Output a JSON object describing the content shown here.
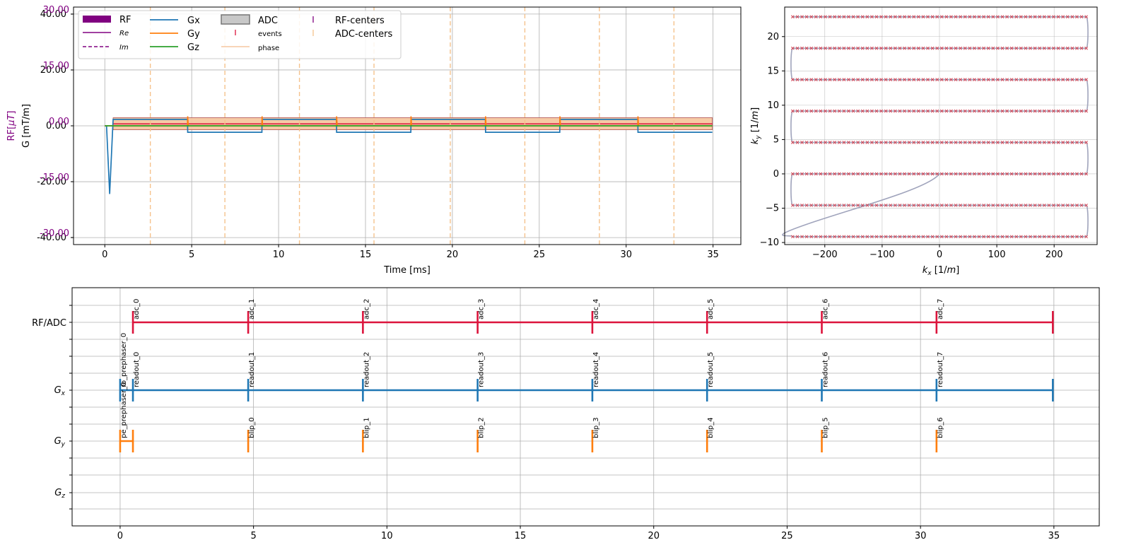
{
  "colors": {
    "rf": "#800080",
    "gx": "#1f77b4",
    "gy": "#ff7f0e",
    "gz": "#2ca02c",
    "adc_events": "#dc143c",
    "adc_phase": "#f5c7a0",
    "adc_centers": "#f5c28c",
    "ktraj": "#a0a4bc",
    "ksamples": "#d24050",
    "grid": "#b0b0b0"
  },
  "chart_data": [
    {
      "id": "sequence",
      "type": "line",
      "xlabel": "Time [ms]",
      "ylabel_rf": "RF[$\\mu T$]",
      "ylabel_rf_parts": [
        "RF[",
        "μT",
        "]"
      ],
      "ylabel_g": "G [mT/m]",
      "xlim": [
        -1.8,
        36.6
      ],
      "ylim_g": [
        -42.5,
        42.5
      ],
      "ylim_rf": [
        -31.9,
        31.9
      ],
      "x_ticks": [
        0,
        5,
        10,
        15,
        20,
        25,
        30,
        35
      ],
      "x_tick_labels": [
        "0",
        "5",
        "10",
        "15",
        "20",
        "25",
        "30",
        "35"
      ],
      "g_ticks": [
        40,
        20,
        0,
        -20,
        -40
      ],
      "g_tick_labels": [
        "40.00",
        "20.00",
        "0.00",
        "-20.00",
        "-40.00"
      ],
      "rf_ticks": [
        30,
        15,
        0,
        -15,
        -30
      ],
      "rf_tick_labels": [
        "30.00",
        "15.00",
        "0.00",
        "-15.00",
        "-30.00"
      ],
      "grid": true,
      "legend_position": "top-left",
      "legend": {
        "rf": "RF",
        "re": "Re",
        "im": "Im",
        "gx": "Gx",
        "gy": "Gy",
        "gz": "Gz",
        "adc": "ADC",
        "events": "events",
        "phase": "phase",
        "rf_centers": "RF-centers",
        "adc_centers": "ADC-centers"
      },
      "series": [
        {
          "name": "Gx",
          "x": [
            0,
            0.1,
            0.28,
            0.46,
            0.48,
            4.76,
            4.77,
            9.04,
            9.05,
            13.33,
            13.34,
            17.61,
            17.62,
            21.9,
            21.91,
            26.18,
            26.19,
            30.67,
            30.68,
            34.96
          ],
          "y": [
            0,
            0,
            -24.4,
            0,
            2.3,
            2.3,
            -2.3,
            -2.3,
            2.3,
            2.3,
            -2.3,
            -2.3,
            2.3,
            2.3,
            -2.3,
            -2.3,
            2.3,
            2.3,
            -2.3,
            -2.3
          ]
        },
        {
          "name": "Gy",
          "x": [
            0,
            0.46,
            4.76,
            4.77,
            4.8,
            9.04,
            9.05,
            9.08,
            13.33,
            13.34,
            13.37,
            17.61,
            17.62,
            17.65,
            21.9,
            21.91,
            21.94,
            26.18,
            26.19,
            26.22,
            30.67,
            30.68,
            30.71,
            34.96
          ],
          "y": [
            0,
            0,
            0,
            3.4,
            0,
            0,
            3.4,
            0,
            0,
            3.4,
            0,
            0,
            3.4,
            0,
            0,
            3.4,
            0,
            0,
            3.4,
            0,
            0,
            3.4,
            0,
            0
          ]
        },
        {
          "name": "Gz",
          "x": [
            0,
            0.46,
            34.96
          ],
          "y": [
            0,
            0,
            0
          ]
        }
      ],
      "adc_blocks": [
        {
          "start": 0.48,
          "end": 34.96
        }
      ],
      "adc_centers": [
        2.62,
        6.91,
        11.2,
        15.49,
        19.88,
        24.17,
        28.46,
        32.75
      ]
    },
    {
      "id": "kspace",
      "type": "scatter",
      "xlabel": "$k_x$ [1/$m$]",
      "ylabel": "$k_y$ [1/$m$]",
      "xlabel_parts": [
        "k",
        "x",
        " [1/",
        "m",
        "]"
      ],
      "ylabel_parts": [
        "k",
        "y",
        " [1/",
        "m",
        "]"
      ],
      "xlim": [
        -270,
        275
      ],
      "ylim": [
        -10.3,
        24.3
      ],
      "x_ticks": [
        -200,
        -100,
        0,
        100,
        200
      ],
      "x_tick_labels": [
        "−200",
        "−100",
        "0",
        "100",
        "200"
      ],
      "y_ticks": [
        -10,
        -5,
        0,
        5,
        10,
        15,
        20
      ],
      "y_tick_labels": [
        "−10",
        "−5",
        "0",
        "5",
        "10",
        "15",
        "20"
      ],
      "grid": true,
      "trajectory_start": [
        0,
        0
      ],
      "prephased_corner": [
        -256,
        -9.15
      ],
      "line_ky": [
        -9.15,
        -4.58,
        0,
        4.58,
        9.15,
        13.73,
        18.3,
        22.88
      ],
      "line_kx_range": [
        -256,
        256
      ],
      "samples_per_line": 64
    },
    {
      "id": "block_timeline",
      "type": "timeline",
      "xlim": [
        -1.8,
        36.7
      ],
      "x_ticks": [
        0,
        5,
        10,
        15,
        20,
        25,
        30,
        35
      ],
      "x_tick_labels": [
        "0",
        "5",
        "10",
        "15",
        "20",
        "25",
        "30",
        "35"
      ],
      "grid": true,
      "rows": [
        {
          "label": "RF/ADC",
          "id": "rfadc"
        },
        {
          "label_main": "G",
          "label_sub": "x",
          "id": "gx"
        },
        {
          "label_main": "G",
          "label_sub": "y",
          "id": "gy"
        },
        {
          "label_main": "G",
          "label_sub": "z",
          "id": "gz"
        }
      ],
      "rfadc_line": {
        "start": 0.48,
        "end": 34.96
      },
      "rfadc_events": [
        {
          "t": 0.48,
          "label": "adc_0"
        },
        {
          "t": 4.8,
          "label": "adc_1"
        },
        {
          "t": 9.1,
          "label": "adc_2"
        },
        {
          "t": 13.4,
          "label": "adc_3"
        },
        {
          "t": 17.7,
          "label": "adc_4"
        },
        {
          "t": 22.0,
          "label": "adc_5"
        },
        {
          "t": 26.3,
          "label": "adc_6"
        },
        {
          "t": 30.6,
          "label": "adc_7"
        }
      ],
      "gx_line": {
        "start": 0.0,
        "end": 34.96
      },
      "gx_events": [
        {
          "t": 0.0,
          "label": "ro_prephaser_0"
        },
        {
          "t": 0.48,
          "label": "readout_0"
        },
        {
          "t": 4.8,
          "label": "readout_1"
        },
        {
          "t": 9.1,
          "label": "readout_2"
        },
        {
          "t": 13.4,
          "label": "readout_3"
        },
        {
          "t": 17.7,
          "label": "readout_4"
        },
        {
          "t": 22.0,
          "label": "readout_5"
        },
        {
          "t": 26.3,
          "label": "readout_6"
        },
        {
          "t": 30.6,
          "label": "readout_7"
        }
      ],
      "gy_prephaser": {
        "start": 0.0,
        "end": 0.48,
        "label": "pe_prephaser_0"
      },
      "gy_events": [
        {
          "t": 4.8,
          "label": "blip_0"
        },
        {
          "t": 9.1,
          "label": "blip_1"
        },
        {
          "t": 13.4,
          "label": "blip_2"
        },
        {
          "t": 17.7,
          "label": "blip_3"
        },
        {
          "t": 22.0,
          "label": "blip_4"
        },
        {
          "t": 26.3,
          "label": "blip_5"
        },
        {
          "t": 30.6,
          "label": "blip_6"
        }
      ]
    }
  ]
}
